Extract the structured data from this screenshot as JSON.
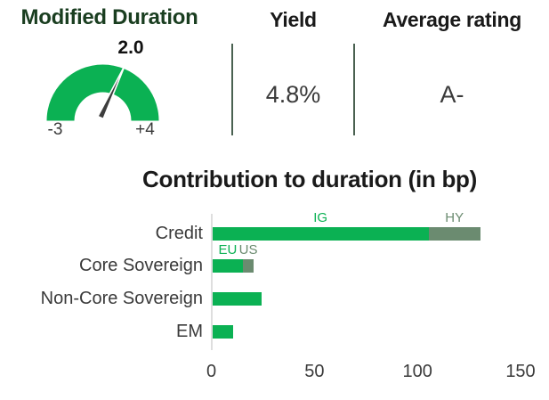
{
  "kpis": {
    "yield": {
      "title": "Yield",
      "value": "4.8%"
    },
    "average_rating": {
      "title": "Average rating",
      "value": "A-"
    }
  },
  "colors": {
    "green": "#0bb153",
    "sage": "#6b8b70",
    "dark_green_title": "#1a3e20",
    "divider": "#4a6151",
    "axis_line": "#dedede",
    "needle": "#3d3d3d"
  },
  "chart_data": [
    {
      "type": "gauge",
      "title": "Modified Duration",
      "value": 2.0,
      "value_label": "2.0",
      "min": -3,
      "max": 4,
      "min_label": "-3",
      "max_label": "+4",
      "arc_color": "#0bb153"
    },
    {
      "type": "bar",
      "orientation": "horizontal",
      "stacked": true,
      "title": "Contribution to duration (in bp)",
      "categories": [
        "Credit",
        "Core Sovereign",
        "Non-Core Sovereign",
        "EM"
      ],
      "stacks": [
        {
          "category": "Credit",
          "segments": [
            {
              "label": "IG",
              "value": 105,
              "color": "#0bb153"
            },
            {
              "label": "HY",
              "value": 25,
              "color": "#6b8b70"
            }
          ]
        },
        {
          "category": "Core Sovereign",
          "segments": [
            {
              "label": "EU",
              "value": 15,
              "color": "#0bb153"
            },
            {
              "label": "US",
              "value": 5,
              "color": "#6b8b70"
            }
          ]
        },
        {
          "category": "Non-Core Sovereign",
          "segments": [
            {
              "label": "",
              "value": 24,
              "color": "#0bb153"
            }
          ]
        },
        {
          "category": "EM",
          "segments": [
            {
              "label": "",
              "value": 10,
              "color": "#0bb153"
            }
          ]
        }
      ],
      "xlim": [
        0,
        150
      ],
      "xticks": [
        "0",
        "50",
        "100",
        "150"
      ],
      "xlabel": "",
      "ylabel": "",
      "grid": false,
      "legend": "inline segment labels above bars"
    }
  ]
}
